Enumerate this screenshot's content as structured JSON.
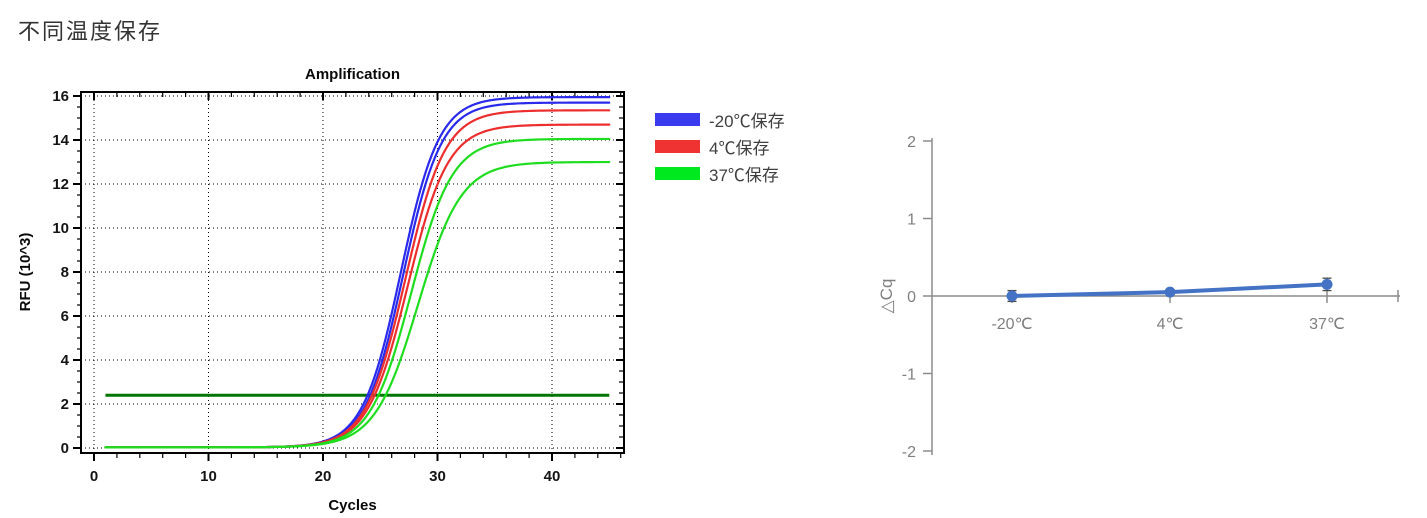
{
  "page_title": "不同温度保存",
  "chart_data": [
    {
      "id": "amplification",
      "type": "line",
      "title": "Amplification",
      "xlabel": "Cycles",
      "ylabel": "RFU (10^3)",
      "xlim": [
        -1.2,
        46.3
      ],
      "ylim": [
        -0.25,
        16.35
      ],
      "x_ticks": [
        0,
        10,
        20,
        30,
        40
      ],
      "x_minor_step": 2,
      "y_ticks": [
        0,
        2,
        4,
        6,
        8,
        10,
        12,
        14,
        16
      ],
      "y_minor_step": 0.5,
      "grid": "dotted",
      "data_x_range": [
        1,
        45
      ],
      "baseline_rfu": 0.03,
      "threshold_line": {
        "y": 2.4,
        "x_start": 1,
        "x_end": 45,
        "color": "#007700",
        "width": 3
      },
      "series": [
        {
          "group": "-20℃保存",
          "replicate": 1,
          "color": "#2a2aed",
          "plateau": 15.95,
          "midpoint_cycle": 26.8,
          "slope": 0.6
        },
        {
          "group": "-20℃保存",
          "replicate": 2,
          "color": "#2a2aed",
          "plateau": 15.7,
          "midpoint_cycle": 27.0,
          "slope": 0.6
        },
        {
          "group": "4℃保存",
          "replicate": 1,
          "color": "#ed2e2e",
          "plateau": 15.35,
          "midpoint_cycle": 27.2,
          "slope": 0.58
        },
        {
          "group": "4℃保存",
          "replicate": 2,
          "color": "#ed2e2e",
          "plateau": 14.7,
          "midpoint_cycle": 27.4,
          "slope": 0.57
        },
        {
          "group": "37℃保存",
          "replicate": 1,
          "color": "#1fdd1f",
          "plateau": 14.05,
          "midpoint_cycle": 27.7,
          "slope": 0.56
        },
        {
          "group": "37℃保存",
          "replicate": 2,
          "color": "#1fdd1f",
          "plateau": 13.0,
          "midpoint_cycle": 28.3,
          "slope": 0.53
        }
      ],
      "legend": {
        "position": "right-outside",
        "entries": [
          {
            "label": "-20℃保存",
            "color": "#3a3aef"
          },
          {
            "label": "4℃保存",
            "color": "#ef3333"
          },
          {
            "label": "37℃保存",
            "color": "#00e81e"
          }
        ]
      }
    },
    {
      "id": "delta-cq",
      "type": "line",
      "title": "",
      "ylabel": "△Cq",
      "categories": [
        "-20℃",
        "4℃",
        "37℃"
      ],
      "values": [
        0.0,
        0.05,
        0.15
      ],
      "error_bars": [
        0.07,
        0.03,
        0.08
      ],
      "ylim": [
        -2,
        2
      ],
      "y_ticks": [
        2,
        1,
        0,
        -1,
        -2
      ],
      "grid": "off",
      "line_color": "#4472c4",
      "marker": "circle",
      "axis_color": "#8c8c8c",
      "error_bar_color": "#4a4a4a"
    }
  ]
}
